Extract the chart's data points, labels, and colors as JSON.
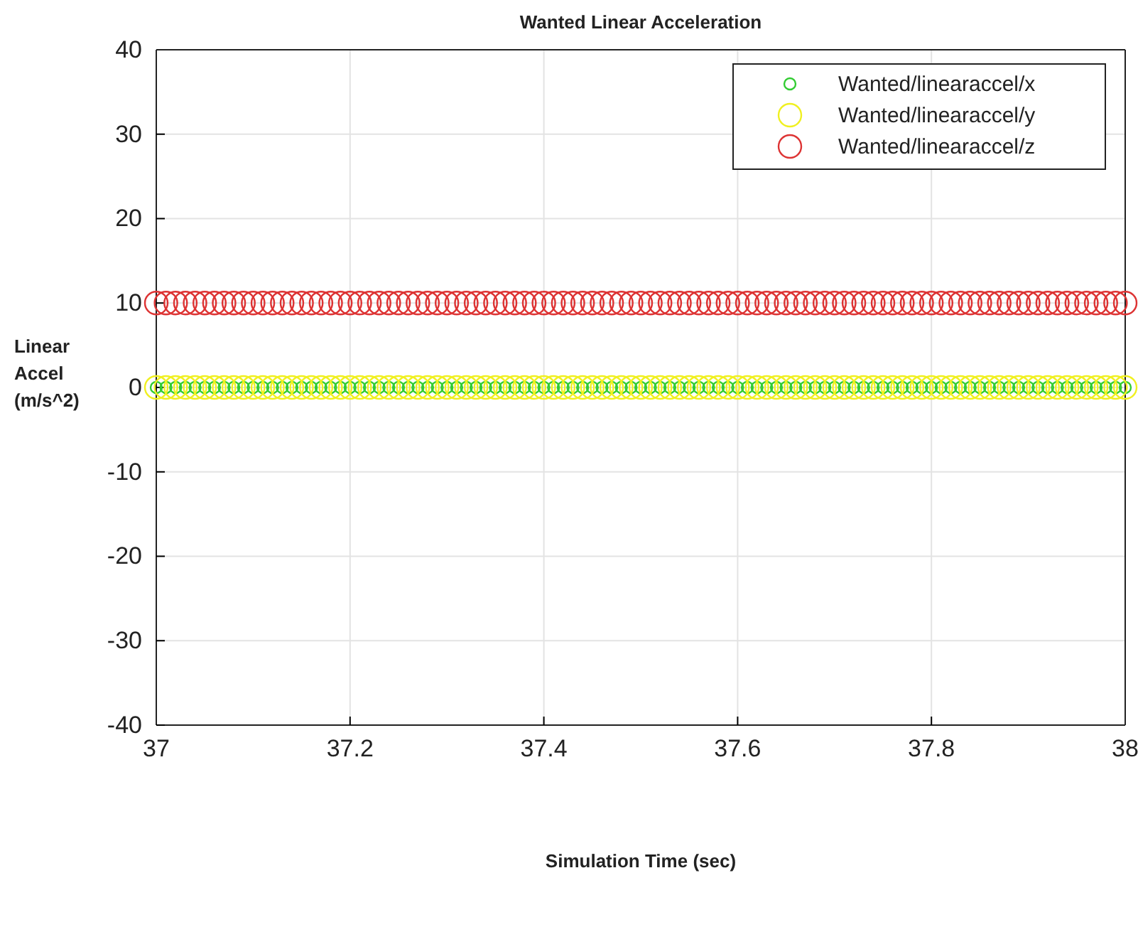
{
  "chart_data": {
    "type": "scatter",
    "title": "Wanted Linear Acceleration",
    "xlabel": "Simulation Time (sec)",
    "ylabel": "Linear Accel (m/s^2)",
    "x": [
      37,
      37.01,
      37.02,
      37.03,
      37.04,
      37.05,
      37.06,
      37.07,
      37.08,
      37.09,
      37.1,
      37.11,
      37.12,
      37.13,
      37.14,
      37.15,
      37.16,
      37.17,
      37.18,
      37.19,
      37.2,
      37.21,
      37.22,
      37.23,
      37.24,
      37.25,
      37.26,
      37.27,
      37.28,
      37.29,
      37.3,
      37.31,
      37.32,
      37.33,
      37.34,
      37.35,
      37.36,
      37.37,
      37.38,
      37.39,
      37.4,
      37.41,
      37.42,
      37.43,
      37.44,
      37.45,
      37.46,
      37.47,
      37.48,
      37.49,
      37.5,
      37.51,
      37.52,
      37.53,
      37.54,
      37.55,
      37.56,
      37.57,
      37.58,
      37.59,
      37.6,
      37.61,
      37.62,
      37.63,
      37.64,
      37.65,
      37.66,
      37.67,
      37.68,
      37.69,
      37.7,
      37.71,
      37.72,
      37.73,
      37.74,
      37.75,
      37.76,
      37.77,
      37.78,
      37.79,
      37.8,
      37.81,
      37.82,
      37.83,
      37.84,
      37.85,
      37.86,
      37.87,
      37.88,
      37.89,
      37.9,
      37.91,
      37.92,
      37.93,
      37.94,
      37.95,
      37.96,
      37.97,
      37.98,
      37.99,
      38
    ],
    "series": [
      {
        "name": "Wanted/linearaccel/x",
        "color": "#33cc33",
        "values": [
          0,
          0,
          0,
          0,
          0,
          0,
          0,
          0,
          0,
          0,
          0,
          0,
          0,
          0,
          0,
          0,
          0,
          0,
          0,
          0,
          0,
          0,
          0,
          0,
          0,
          0,
          0,
          0,
          0,
          0,
          0,
          0,
          0,
          0,
          0,
          0,
          0,
          0,
          0,
          0,
          0,
          0,
          0,
          0,
          0,
          0,
          0,
          0,
          0,
          0,
          0,
          0,
          0,
          0,
          0,
          0,
          0,
          0,
          0,
          0,
          0,
          0,
          0,
          0,
          0,
          0,
          0,
          0,
          0,
          0,
          0,
          0,
          0,
          0,
          0,
          0,
          0,
          0,
          0,
          0,
          0,
          0,
          0,
          0,
          0,
          0,
          0,
          0,
          0,
          0,
          0,
          0,
          0,
          0,
          0,
          0,
          0,
          0,
          0,
          0,
          0
        ]
      },
      {
        "name": "Wanted/linearaccel/y",
        "color": "#f0f020",
        "values": [
          0,
          0,
          0,
          0,
          0,
          0,
          0,
          0,
          0,
          0,
          0,
          0,
          0,
          0,
          0,
          0,
          0,
          0,
          0,
          0,
          0,
          0,
          0,
          0,
          0,
          0,
          0,
          0,
          0,
          0,
          0,
          0,
          0,
          0,
          0,
          0,
          0,
          0,
          0,
          0,
          0,
          0,
          0,
          0,
          0,
          0,
          0,
          0,
          0,
          0,
          0,
          0,
          0,
          0,
          0,
          0,
          0,
          0,
          0,
          0,
          0,
          0,
          0,
          0,
          0,
          0,
          0,
          0,
          0,
          0,
          0,
          0,
          0,
          0,
          0,
          0,
          0,
          0,
          0,
          0,
          0,
          0,
          0,
          0,
          0,
          0,
          0,
          0,
          0,
          0,
          0,
          0,
          0,
          0,
          0,
          0,
          0,
          0,
          0,
          0,
          0
        ]
      },
      {
        "name": "Wanted/linearaccel/z",
        "color": "#dd3333",
        "values": [
          10,
          10,
          10,
          10,
          10,
          10,
          10,
          10,
          10,
          10,
          10,
          10,
          10,
          10,
          10,
          10,
          10,
          10,
          10,
          10,
          10,
          10,
          10,
          10,
          10,
          10,
          10,
          10,
          10,
          10,
          10,
          10,
          10,
          10,
          10,
          10,
          10,
          10,
          10,
          10,
          10,
          10,
          10,
          10,
          10,
          10,
          10,
          10,
          10,
          10,
          10,
          10,
          10,
          10,
          10,
          10,
          10,
          10,
          10,
          10,
          10,
          10,
          10,
          10,
          10,
          10,
          10,
          10,
          10,
          10,
          10,
          10,
          10,
          10,
          10,
          10,
          10,
          10,
          10,
          10,
          10,
          10,
          10,
          10,
          10,
          10,
          10,
          10,
          10,
          10,
          10,
          10,
          10,
          10,
          10,
          10,
          10,
          10,
          10,
          10,
          10
        ]
      }
    ],
    "xlim": [
      37,
      38
    ],
    "xticks": [
      37,
      37.2,
      37.4,
      37.6,
      37.8,
      38
    ],
    "ylim": [
      -40,
      40
    ],
    "yticks": [
      -40,
      -30,
      -20,
      -10,
      0,
      10,
      20,
      30,
      40
    ],
    "grid": true,
    "legend": "top right",
    "marker": "circle"
  }
}
